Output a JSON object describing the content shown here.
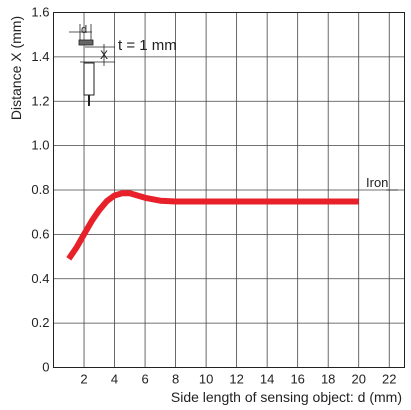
{
  "chart_data": {
    "type": "line",
    "xlabel": "Side length of sensing object: d (mm)",
    "ylabel": "Distance X (mm)",
    "xlim": [
      0,
      23
    ],
    "ylim": [
      0,
      1.6
    ],
    "xticks": [
      2,
      4,
      6,
      8,
      10,
      12,
      14,
      16,
      18,
      20,
      22
    ],
    "yticks": [
      0,
      0.2,
      0.4,
      0.6,
      0.8,
      1.0,
      1.2,
      1.4,
      1.6
    ],
    "ytick_labels": [
      "0",
      "0.2",
      "0.4",
      "0.6",
      "0.8",
      "1.0",
      "1.2",
      "1.4",
      "1.6"
    ],
    "grid": true,
    "series": [
      {
        "name": "Iron",
        "color": "#e8202a",
        "x": [
          1,
          1.5,
          2,
          2.5,
          3,
          3.5,
          4,
          4.5,
          5,
          5.5,
          6,
          7,
          8,
          10,
          12,
          14,
          16,
          18,
          20
        ],
        "y": [
          0.49,
          0.54,
          0.6,
          0.66,
          0.71,
          0.75,
          0.775,
          0.785,
          0.785,
          0.775,
          0.765,
          0.752,
          0.748,
          0.748,
          0.748,
          0.748,
          0.748,
          0.748,
          0.748
        ]
      }
    ],
    "inset": {
      "label_d": "d",
      "label_x": "X",
      "text": "t = 1 mm"
    }
  }
}
